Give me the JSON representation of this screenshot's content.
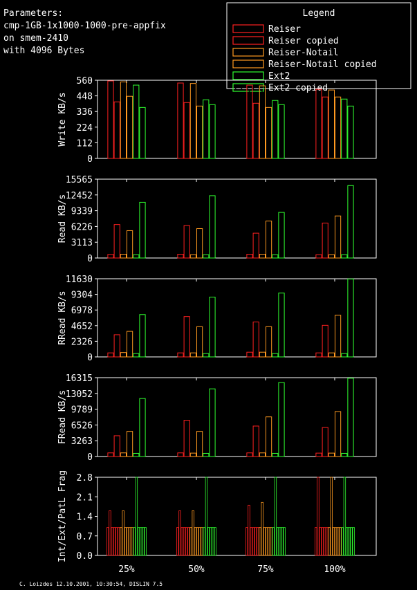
{
  "header": {
    "lines": [
      "Parameters:",
      "cmp-1GB-1x1000-1000-pre-appfix",
      "on smem-2410",
      "with 4096 Bytes"
    ]
  },
  "legend": {
    "title": "Legend",
    "entries": [
      {
        "label": "Reiser",
        "color": "#ff2020"
      },
      {
        "label": "Reiser copied",
        "color": "#ff2020"
      },
      {
        "label": "Reiser-Notail",
        "color": "#ff9a20"
      },
      {
        "label": "Reiser-Notail copied",
        "color": "#ff9a20"
      },
      {
        "label": "Ext2",
        "color": "#30ff30"
      },
      {
        "label": "Ext2 copied",
        "color": "#30ff30"
      }
    ]
  },
  "footer": "C. Loizdes 12.10.2001, 10:30:54, DISLIN 7.5",
  "chart_data": [
    {
      "type": "bar",
      "ylabel": "Write KB/s",
      "ylim": [
        0,
        560
      ],
      "yticks": [
        "0",
        "112",
        "224",
        "336",
        "448",
        "560"
      ],
      "categories": [
        "25%",
        "50%",
        "75%",
        "100%"
      ],
      "series": [
        {
          "name": "Reiser",
          "values": [
            555,
            540,
            525,
            495
          ]
        },
        {
          "name": "Reiser copied",
          "values": [
            405,
            400,
            395,
            440
          ]
        },
        {
          "name": "Reiser-Notail",
          "values": [
            548,
            537,
            520,
            490
          ]
        },
        {
          "name": "Reiser-Notail copied",
          "values": [
            445,
            375,
            365,
            440
          ]
        },
        {
          "name": "Ext2",
          "values": [
            525,
            420,
            415,
            425
          ]
        },
        {
          "name": "Ext2 copied",
          "values": [
            365,
            385,
            385,
            375
          ]
        }
      ]
    },
    {
      "type": "bar",
      "ylabel": "Read KB/s",
      "ylim": [
        0,
        15565
      ],
      "yticks": [
        "0",
        "3113",
        "6226",
        "9339",
        "12452",
        "15565"
      ],
      "categories": [
        "25%",
        "50%",
        "75%",
        "100%"
      ],
      "series": [
        {
          "name": "Reiser",
          "values": [
            700,
            750,
            750,
            650
          ]
        },
        {
          "name": "Reiser copied",
          "values": [
            6600,
            6400,
            4900,
            6900
          ]
        },
        {
          "name": "Reiser-Notail",
          "values": [
            750,
            650,
            750,
            650
          ]
        },
        {
          "name": "Reiser-Notail copied",
          "values": [
            5400,
            5800,
            7300,
            8300
          ]
        },
        {
          "name": "Ext2",
          "values": [
            650,
            650,
            650,
            650
          ]
        },
        {
          "name": "Ext2 copied",
          "values": [
            11000,
            12300,
            9000,
            14300
          ]
        }
      ]
    },
    {
      "type": "bar",
      "ylabel": "RRead KB/s",
      "ylim": [
        0,
        11630
      ],
      "yticks": [
        "0",
        "2326",
        "4652",
        "6978",
        "9304",
        "11630"
      ],
      "categories": [
        "25%",
        "50%",
        "75%",
        "100%"
      ],
      "series": [
        {
          "name": "Reiser",
          "values": [
            600,
            600,
            700,
            600
          ]
        },
        {
          "name": "Reiser copied",
          "values": [
            3300,
            6000,
            5200,
            4700
          ]
        },
        {
          "name": "Reiser-Notail",
          "values": [
            650,
            600,
            700,
            600
          ]
        },
        {
          "name": "Reiser-Notail copied",
          "values": [
            3800,
            4500,
            4500,
            6200
          ]
        },
        {
          "name": "Ext2",
          "values": [
            500,
            500,
            500,
            500
          ]
        },
        {
          "name": "Ext2 copied",
          "values": [
            6300,
            8900,
            9500,
            11600
          ]
        }
      ]
    },
    {
      "type": "bar",
      "ylabel": "FRead KB/s",
      "ylim": [
        0,
        16315
      ],
      "yticks": [
        "0",
        "3263",
        "6526",
        "9789",
        "13052",
        "16315"
      ],
      "categories": [
        "25%",
        "50%",
        "75%",
        "100%"
      ],
      "series": [
        {
          "name": "Reiser",
          "values": [
            750,
            750,
            750,
            700
          ]
        },
        {
          "name": "Reiser copied",
          "values": [
            4300,
            7500,
            6300,
            6000
          ]
        },
        {
          "name": "Reiser-Notail",
          "values": [
            750,
            700,
            750,
            700
          ]
        },
        {
          "name": "Reiser-Notail copied",
          "values": [
            5200,
            5200,
            8200,
            9300
          ]
        },
        {
          "name": "Ext2",
          "values": [
            650,
            650,
            650,
            650
          ]
        },
        {
          "name": "Ext2 copied",
          "values": [
            12000,
            14000,
            15300,
            16200
          ]
        }
      ]
    },
    {
      "type": "bar",
      "ylabel": "Int/Ext/PatL Frag",
      "ylim": [
        0,
        2.8
      ],
      "yticks": [
        "0.0",
        "0.7",
        "1.4",
        "2.1",
        "2.8"
      ],
      "categories": [
        "25%",
        "50%",
        "75%",
        "100%"
      ],
      "series": [
        {
          "name": "Reiser",
          "values": [
            [
              1.0,
              1.6,
              1.0
            ],
            [
              1.0,
              1.6,
              1.0
            ],
            [
              1.0,
              1.8,
              1.0
            ],
            [
              1.0,
              2.8,
              1.0
            ]
          ]
        },
        {
          "name": "Reiser copied",
          "values": [
            [
              1.0,
              1.0,
              1.0
            ],
            [
              1.0,
              1.0,
              1.0
            ],
            [
              1.0,
              1.0,
              1.0
            ],
            [
              1.0,
              1.0,
              1.0
            ]
          ]
        },
        {
          "name": "Reiser-Notail",
          "values": [
            [
              1.0,
              1.6,
              1.0
            ],
            [
              1.0,
              1.6,
              1.0
            ],
            [
              1.0,
              1.9,
              1.0
            ],
            [
              1.0,
              2.8,
              1.0
            ]
          ]
        },
        {
          "name": "Reiser-Notail copied",
          "values": [
            [
              1.0,
              1.0,
              1.0
            ],
            [
              1.0,
              1.0,
              1.0
            ],
            [
              1.0,
              1.0,
              1.0
            ],
            [
              1.0,
              1.0,
              1.0
            ]
          ]
        },
        {
          "name": "Ext2",
          "values": [
            [
              1.0,
              2.8,
              1.0
            ],
            [
              1.0,
              2.8,
              1.0
            ],
            [
              1.0,
              2.8,
              1.0
            ],
            [
              1.0,
              2.8,
              1.0
            ]
          ]
        },
        {
          "name": "Ext2 copied",
          "values": [
            [
              1.0,
              1.0,
              1.0
            ],
            [
              1.0,
              1.0,
              1.0
            ],
            [
              1.0,
              1.0,
              1.0
            ],
            [
              1.0,
              1.0,
              1.0
            ]
          ]
        }
      ]
    }
  ]
}
